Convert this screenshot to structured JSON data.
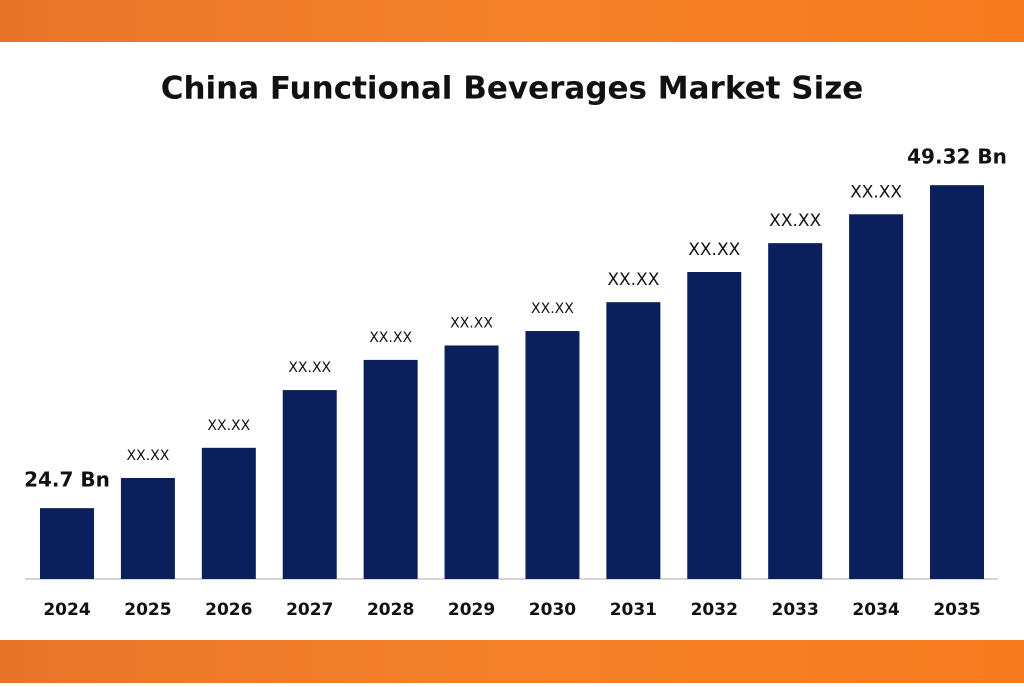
{
  "chart_data": {
    "type": "bar",
    "title": "China Functional Beverages Market Size",
    "categories": [
      "2024",
      "2025",
      "2026",
      "2027",
      "2028",
      "2029",
      "2030",
      "2031",
      "2032",
      "2033",
      "2034",
      "2035"
    ],
    "values": [
      24.7,
      27.0,
      29.3,
      33.7,
      36.0,
      37.1,
      38.2,
      40.4,
      42.7,
      44.9,
      47.1,
      49.32
    ],
    "value_labels": [
      "24.7 Bn",
      "XX.XX",
      "XX.XX",
      "XX.XX",
      "XX.XX",
      "XX.XX",
      "XX.XX",
      "XX.XX",
      "XX.XX",
      "XX.XX",
      "XX.XX",
      "49.32 Bn"
    ],
    "color": "#0a1f5c",
    "ylim": [
      19.3,
      52
    ]
  }
}
